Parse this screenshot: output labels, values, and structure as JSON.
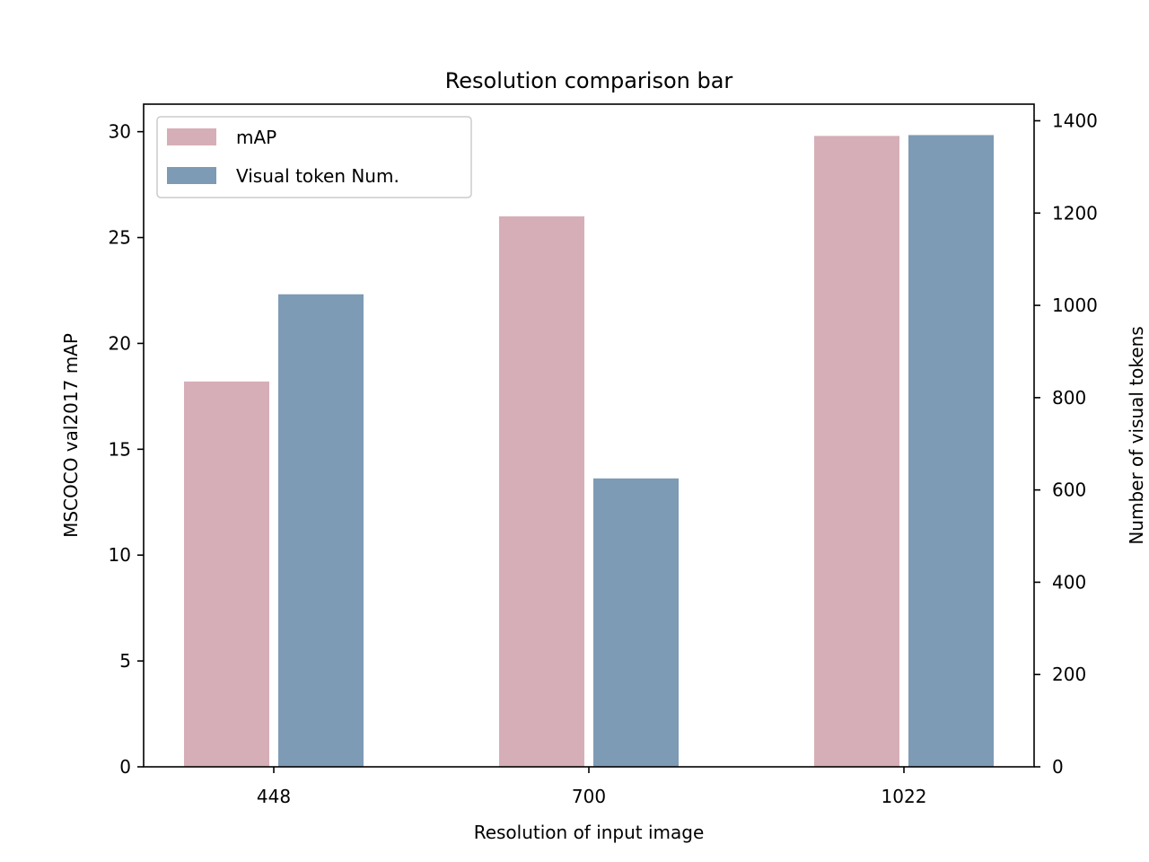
{
  "chart_data": {
    "type": "bar",
    "title": "Resolution comparison bar",
    "xlabel": "Resolution of input image",
    "ylabel": "MSCOCO val2017 mAP",
    "ylabel_right": "Number of visual tokens",
    "categories": [
      "448",
      "700",
      "1022"
    ],
    "ylim": [
      0,
      31.3
    ],
    "ylim_right": [
      0,
      1436
    ],
    "yticks": [
      0,
      5,
      10,
      15,
      20,
      25,
      30
    ],
    "yticks_right": [
      0,
      200,
      400,
      600,
      800,
      1000,
      1200,
      1400
    ],
    "grid": false,
    "legend_position": "upper-left",
    "series": [
      {
        "name": "mAP",
        "axis": "left",
        "color": "#d6aeb7",
        "values": [
          18.2,
          26.0,
          29.8
        ]
      },
      {
        "name": "Visual token Num.",
        "axis": "right",
        "color": "#7e9bb6",
        "values": [
          1024,
          625,
          1369
        ]
      }
    ]
  }
}
